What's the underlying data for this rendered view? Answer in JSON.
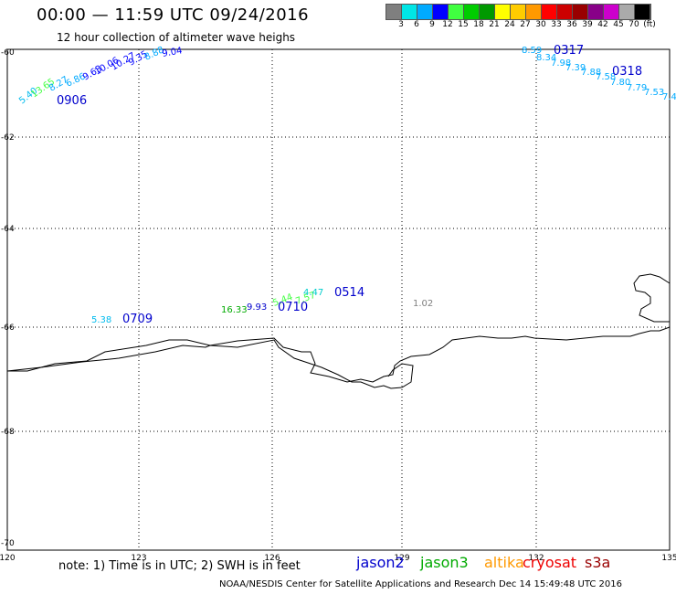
{
  "title": "00:00 — 11:59 UTC 09/24/2016",
  "subtitle": "12 hour collection of altimeter wave heighs",
  "color_scale": {
    "swatches": [
      "#7f7f7f",
      "#00e5e5",
      "#00aaff",
      "#0000ff",
      "#40ff40",
      "#00cc00",
      "#009900",
      "#ffff00",
      "#ffcc00",
      "#ff9900",
      "#ff0000",
      "#cc0000",
      "#990000",
      "#880088",
      "#cc00cc",
      "#aaaaaa",
      "#000000"
    ],
    "labels": [
      "3",
      "6",
      "9",
      "12",
      "15",
      "18",
      "21",
      "24",
      "27",
      "30",
      "33",
      "36",
      "39",
      "42",
      "45",
      "70",
      "(ft)"
    ]
  },
  "axes": {
    "x_ticks": [
      "120",
      "123",
      "126",
      "129",
      "132",
      "135"
    ],
    "y_ticks": [
      "-60",
      "-62",
      "-64",
      "-66",
      "-68",
      "-70"
    ]
  },
  "passes": [
    {
      "label": "0906",
      "color": "#0000cc",
      "values": [
        {
          "v": "5.40",
          "c": "#00bbee"
        },
        {
          "v": "13.65",
          "c": "#40ff40"
        },
        {
          "v": "8.27",
          "c": "#00aaff"
        },
        {
          "v": "6.86",
          "c": "#00aaff"
        },
        {
          "v": "9.63",
          "c": "#0000ff"
        },
        {
          "v": "10.06",
          "c": "#0000ff"
        },
        {
          "v": "10.27",
          "c": "#0000ff"
        },
        {
          "v": "9.35",
          "c": "#0000ff"
        },
        {
          "v": "8.88",
          "c": "#00aaff"
        },
        {
          "v": "9.04",
          "c": "#0000ff"
        }
      ]
    },
    {
      "label": "0317",
      "color": "#0000cc",
      "values": [
        {
          "v": "8.59",
          "c": "#00aaff"
        },
        {
          "v": "8.34",
          "c": "#00aaff"
        },
        {
          "v": "7.98",
          "c": "#00aaff"
        },
        {
          "v": "7.39",
          "c": "#00aaff"
        },
        {
          "v": "7.88",
          "c": "#00aaff"
        }
      ]
    },
    {
      "label": "0318",
      "color": "#0000cc",
      "values": [
        {
          "v": "7.58",
          "c": "#00aaff"
        },
        {
          "v": "7.80",
          "c": "#00aaff"
        },
        {
          "v": "7.79",
          "c": "#00aaff"
        },
        {
          "v": "7.53",
          "c": "#00aaff"
        },
        {
          "v": "7.4",
          "c": "#00aaff"
        }
      ]
    },
    {
      "label": "0709",
      "color": "#0000cc",
      "values": [
        {
          "v": "5.38",
          "c": "#00bbee"
        }
      ]
    },
    {
      "label": "0710",
      "color": "#0000cc",
      "values": [
        {
          "v": "16.33",
          "c": "#00aa00"
        },
        {
          "v": "9.93",
          "c": "#0000cc"
        },
        {
          "v": "5.44",
          "c": "#40ff40"
        },
        {
          "v": "7.57",
          "c": "#40ff40"
        }
      ]
    },
    {
      "label": "0514",
      "color": "#0000cc",
      "values": [
        {
          "v": "4.47",
          "c": "#00cccc"
        }
      ]
    },
    {
      "label": "",
      "color": "#7f7f7f",
      "values": [
        {
          "v": "1.02",
          "c": "#7f7f7f"
        }
      ]
    }
  ],
  "note": "note: 1) Time is in UTC; 2) SWH is in feet",
  "legend": [
    {
      "name": "jason2",
      "color": "#0000cc"
    },
    {
      "name": "jason3",
      "color": "#00aa00"
    },
    {
      "name": "altika",
      "color": "#ff9900"
    },
    {
      "name": "cryosat",
      "color": "#ee0000"
    },
    {
      "name": "s3a",
      "color": "#990000"
    }
  ],
  "footer": "NOAA/NESDIS Center for Satellite Applications and Research    Dec 14 15:49:48 UTC 2016"
}
